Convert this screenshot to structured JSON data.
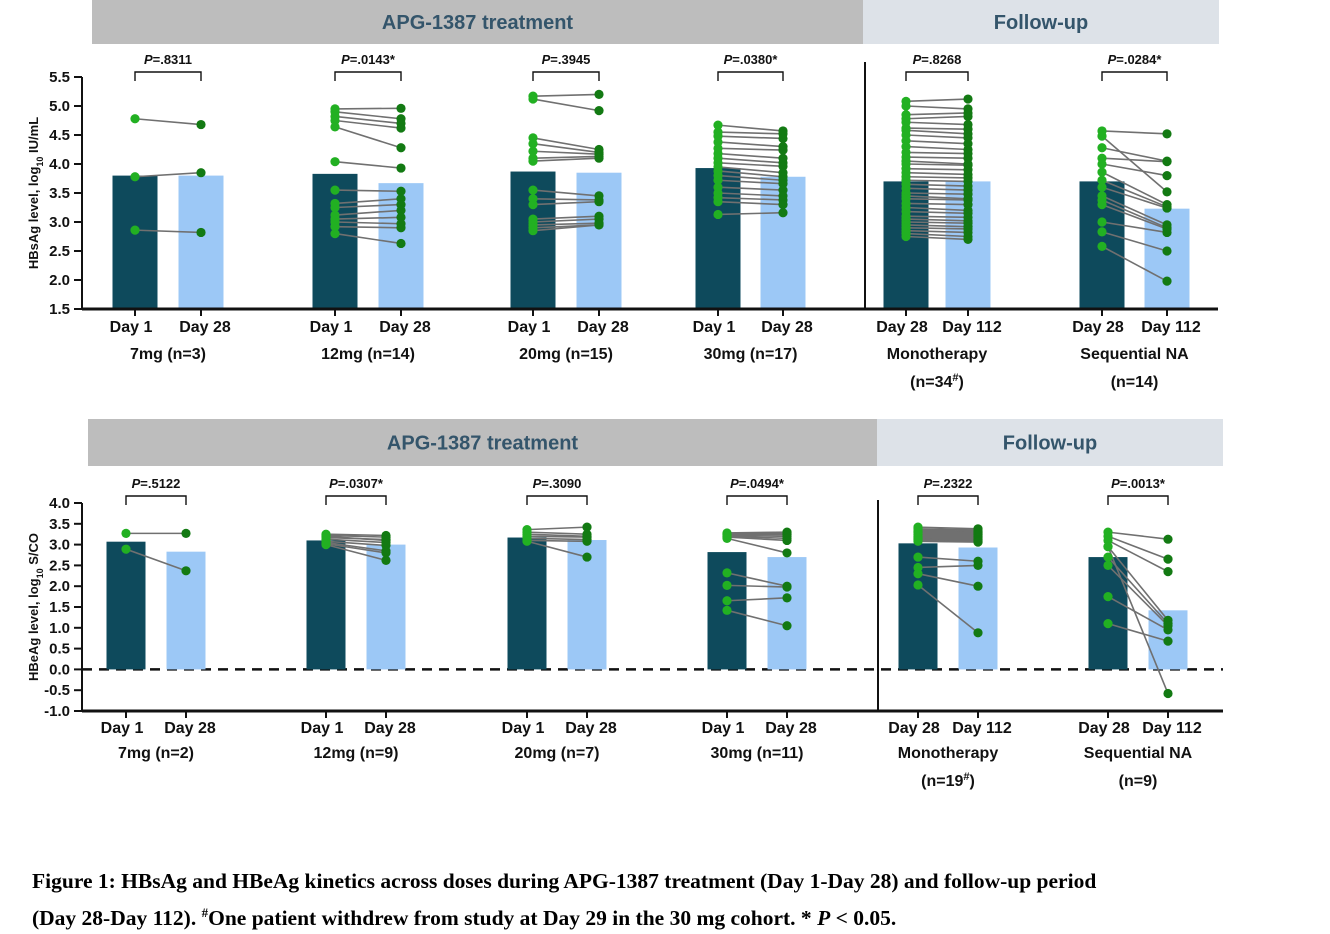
{
  "colors": {
    "banner_treatment": "#bdbdbd",
    "banner_followup": "#dde2e8",
    "banner_text": "#34556b",
    "bar_first": "#0e4a5c",
    "bar_second": "#9cc8f6",
    "dot_first": "#22b022",
    "dot_second": "#137a13",
    "line": "#707070",
    "axis": "#111111"
  },
  "chart_data": [
    {
      "type": "bar",
      "title": "",
      "ylabel": "HBsAg level, log10 IU/mL",
      "ylim": [
        1.5,
        5.5
      ],
      "yticks": [
        "1.5",
        "2.0",
        "2.5",
        "3.0",
        "3.5",
        "4.0",
        "4.5",
        "5.0",
        "5.5"
      ],
      "zero_line": false,
      "banners": [
        {
          "label": "APG-1387 treatment",
          "kind": "treatment"
        },
        {
          "label": "Follow-up",
          "kind": "followup"
        }
      ],
      "groups": [
        {
          "name": "7mg (n=3)",
          "labels": [
            "Day 1",
            "Day 28"
          ],
          "bars": [
            3.8,
            3.8
          ],
          "p": "P=.8311",
          "pairs": [
            [
              4.78,
              4.68
            ],
            [
              3.78,
              3.85
            ],
            [
              2.86,
              2.82
            ]
          ]
        },
        {
          "name": "12mg (n=14)",
          "labels": [
            "Day 1",
            "Day 28"
          ],
          "bars": [
            3.83,
            3.67
          ],
          "p": "P=.0143*",
          "pairs": [
            [
              4.95,
              4.96
            ],
            [
              4.9,
              4.78
            ],
            [
              4.82,
              4.7
            ],
            [
              4.75,
              4.62
            ],
            [
              4.64,
              4.28
            ],
            [
              4.04,
              3.93
            ],
            [
              3.55,
              3.53
            ],
            [
              3.32,
              3.4
            ],
            [
              3.25,
              3.3
            ],
            [
              3.12,
              3.2
            ],
            [
              3.05,
              3.08
            ],
            [
              3.0,
              2.97
            ],
            [
              2.92,
              2.9
            ],
            [
              2.8,
              2.63
            ]
          ]
        },
        {
          "name": "20mg (n=15)",
          "labels": [
            "Day 1",
            "Day 28"
          ],
          "bars": [
            3.87,
            3.85
          ],
          "p": "P=.3945",
          "pairs": [
            [
              5.17,
              5.2
            ],
            [
              5.12,
              4.92
            ],
            [
              4.45,
              4.25
            ],
            [
              4.35,
              4.2
            ],
            [
              4.22,
              4.17
            ],
            [
              4.1,
              4.13
            ],
            [
              4.05,
              4.1
            ],
            [
              3.55,
              3.45
            ],
            [
              3.4,
              3.38
            ],
            [
              3.3,
              3.35
            ],
            [
              3.05,
              3.1
            ],
            [
              3.0,
              3.05
            ],
            [
              2.95,
              2.98
            ],
            [
              2.9,
              2.95
            ],
            [
              2.85,
              2.95
            ]
          ]
        },
        {
          "name": "30mg (n=17)",
          "labels": [
            "Day 1",
            "Day 28"
          ],
          "bars": [
            3.93,
            3.78
          ],
          "p": "P=.0380*",
          "pairs": [
            [
              4.67,
              4.57
            ],
            [
              4.55,
              4.52
            ],
            [
              4.48,
              4.44
            ],
            [
              4.38,
              4.3
            ],
            [
              4.27,
              4.24
            ],
            [
              4.18,
              4.1
            ],
            [
              4.1,
              4.02
            ],
            [
              4.02,
              3.96
            ],
            [
              3.95,
              3.85
            ],
            [
              3.88,
              3.78
            ],
            [
              3.8,
              3.72
            ],
            [
              3.72,
              3.66
            ],
            [
              3.6,
              3.55
            ],
            [
              3.5,
              3.45
            ],
            [
              3.42,
              3.38
            ],
            [
              3.35,
              3.3
            ],
            [
              3.13,
              3.16
            ]
          ]
        },
        {
          "name": "Monotherapy",
          "name_note": "(n=34#)",
          "labels": [
            "Day 28",
            "Day 112"
          ],
          "bars": [
            3.7,
            3.7
          ],
          "p": "P=.8268",
          "pairs": [
            [
              5.08,
              5.12
            ],
            [
              5.0,
              4.95
            ],
            [
              4.85,
              4.88
            ],
            [
              4.78,
              4.82
            ],
            [
              4.72,
              4.68
            ],
            [
              4.62,
              4.6
            ],
            [
              4.58,
              4.52
            ],
            [
              4.5,
              4.45
            ],
            [
              4.4,
              4.35
            ],
            [
              4.3,
              4.25
            ],
            [
              4.2,
              4.18
            ],
            [
              4.12,
              4.1
            ],
            [
              4.05,
              4.0
            ],
            [
              4.0,
              3.98
            ],
            [
              3.92,
              3.9
            ],
            [
              3.85,
              3.82
            ],
            [
              3.78,
              3.76
            ],
            [
              3.72,
              3.7
            ],
            [
              3.65,
              3.62
            ],
            [
              3.58,
              3.55
            ],
            [
              3.5,
              3.48
            ],
            [
              3.45,
              3.4
            ],
            [
              3.4,
              3.38
            ],
            [
              3.32,
              3.3
            ],
            [
              3.25,
              3.2
            ],
            [
              3.18,
              3.15
            ],
            [
              3.1,
              3.08
            ],
            [
              3.05,
              3.02
            ],
            [
              3.0,
              2.98
            ],
            [
              2.95,
              2.92
            ],
            [
              2.9,
              2.88
            ],
            [
              2.85,
              2.82
            ],
            [
              2.8,
              2.75
            ],
            [
              2.75,
              2.7
            ]
          ]
        },
        {
          "name": "Sequential NA",
          "name_note": "(n=14)",
          "labels": [
            "Day 28",
            "Day 112"
          ],
          "bars": [
            3.7,
            3.23
          ],
          "p": "P=.0284*",
          "pairs": [
            [
              4.57,
              4.52
            ],
            [
              4.48,
              3.52
            ],
            [
              4.28,
              4.05
            ],
            [
              4.1,
              4.04
            ],
            [
              4.0,
              3.8
            ],
            [
              3.86,
              3.3
            ],
            [
              3.72,
              3.26
            ],
            [
              3.6,
              3.24
            ],
            [
              3.45,
              2.95
            ],
            [
              3.38,
              2.9
            ],
            [
              3.3,
              2.88
            ],
            [
              3.0,
              2.82
            ],
            [
              2.83,
              2.5
            ],
            [
              2.58,
              1.98
            ]
          ]
        }
      ]
    },
    {
      "type": "bar",
      "title": "",
      "ylabel": "HBeAg level, log10 S/CO",
      "ylim": [
        -1.0,
        4.0
      ],
      "yticks": [
        "-1.0",
        "-0.5",
        "0.0",
        "0.5",
        "1.0",
        "1.5",
        "2.0",
        "2.5",
        "3.0",
        "3.5",
        "4.0"
      ],
      "zero_line": true,
      "banners": [
        {
          "label": "APG-1387 treatment",
          "kind": "treatment"
        },
        {
          "label": "Follow-up",
          "kind": "followup"
        }
      ],
      "groups": [
        {
          "name": "7mg (n=2)",
          "labels": [
            "Day 1",
            "Day 28"
          ],
          "bars": [
            3.07,
            2.83
          ],
          "p": "P=.5122",
          "pairs": [
            [
              3.27,
              3.27
            ],
            [
              2.89,
              2.37
            ]
          ]
        },
        {
          "name": "12mg (n=9)",
          "labels": [
            "Day 1",
            "Day 28"
          ],
          "bars": [
            3.1,
            3.0
          ],
          "p": "P=.0307*",
          "pairs": [
            [
              3.25,
              3.22
            ],
            [
              3.22,
              3.18
            ],
            [
              3.2,
              3.1
            ],
            [
              3.17,
              3.12
            ],
            [
              3.13,
              3.05
            ],
            [
              3.08,
              2.98
            ],
            [
              3.05,
              2.85
            ],
            [
              3.02,
              2.8
            ],
            [
              3.0,
              2.62
            ]
          ]
        },
        {
          "name": "20mg (n=7)",
          "labels": [
            "Day 1",
            "Day 28"
          ],
          "bars": [
            3.17,
            3.11
          ],
          "p": "P=.3090",
          "pairs": [
            [
              3.36,
              3.42
            ],
            [
              3.3,
              3.25
            ],
            [
              3.25,
              3.2
            ],
            [
              3.2,
              3.18
            ],
            [
              3.15,
              3.12
            ],
            [
              3.1,
              3.08
            ],
            [
              3.08,
              2.7
            ]
          ]
        },
        {
          "name": "30mg (n=11)",
          "labels": [
            "Day 1",
            "Day 28"
          ],
          "bars": [
            2.82,
            2.7
          ],
          "p": "P=.0494*",
          "pairs": [
            [
              3.28,
              3.3
            ],
            [
              3.26,
              3.27
            ],
            [
              3.24,
              3.24
            ],
            [
              3.22,
              3.2
            ],
            [
              3.2,
              3.15
            ],
            [
              3.18,
              3.1
            ],
            [
              3.15,
              2.8
            ],
            [
              2.32,
              2.0
            ],
            [
              2.02,
              1.98
            ],
            [
              1.65,
              1.72
            ],
            [
              1.42,
              1.05
            ]
          ]
        },
        {
          "name": "Monotherapy",
          "name_note": "(n=19#)",
          "labels": [
            "Day 28",
            "Day 112"
          ],
          "bars": [
            3.03,
            2.93
          ],
          "p": "P=.2322",
          "pairs": [
            [
              3.42,
              3.38
            ],
            [
              3.38,
              3.35
            ],
            [
              3.35,
              3.32
            ],
            [
              3.32,
              3.3
            ],
            [
              3.3,
              3.28
            ],
            [
              3.28,
              3.26
            ],
            [
              3.25,
              3.24
            ],
            [
              3.23,
              3.22
            ],
            [
              3.2,
              3.2
            ],
            [
              3.18,
              3.18
            ],
            [
              3.16,
              3.15
            ],
            [
              3.14,
              3.12
            ],
            [
              3.12,
              3.1
            ],
            [
              3.1,
              3.08
            ],
            [
              3.08,
              3.06
            ],
            [
              2.7,
              2.6
            ],
            [
              2.45,
              2.5
            ],
            [
              2.3,
              2.0
            ],
            [
              2.03,
              0.88
            ]
          ]
        },
        {
          "name": "Sequential NA",
          "name_note": "(n=9)",
          "labels": [
            "Day 28",
            "Day 112"
          ],
          "bars": [
            2.7,
            1.42
          ],
          "p": "P=.0013*",
          "pairs": [
            [
              3.3,
              3.13
            ],
            [
              3.2,
              2.65
            ],
            [
              3.1,
              2.35
            ],
            [
              2.95,
              1.18
            ],
            [
              2.7,
              1.1
            ],
            [
              2.5,
              1.05
            ],
            [
              1.75,
              0.95
            ],
            [
              1.1,
              0.68
            ],
            [
              2.95,
              -0.58
            ]
          ]
        }
      ]
    }
  ],
  "caption": {
    "line1": "Figure 1: HBsAg and HBeAg kinetics across doses during APG-1387 treatment (Day 1-Day 28) and follow-up period",
    "line2_a": "(Day 28-Day 112). ",
    "line2_sup": "#",
    "line2_b": "One patient withdrew from study at Day 29 in the 30 mg cohort. * ",
    "line2_p": "P",
    "line2_c": " < 0.05."
  }
}
